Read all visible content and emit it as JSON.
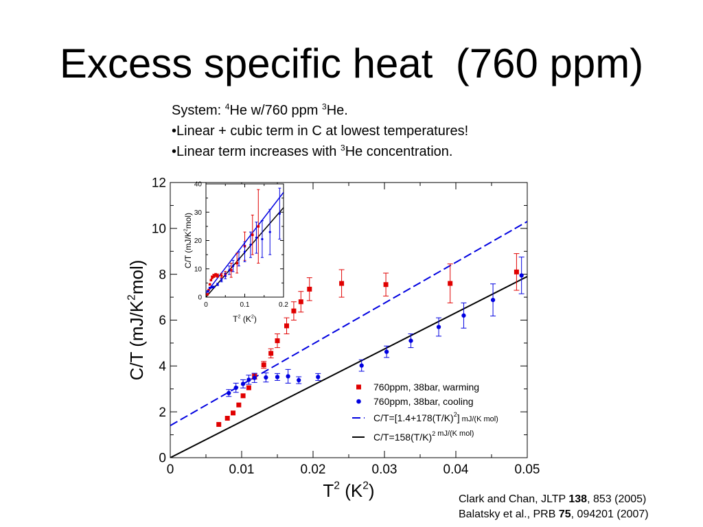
{
  "slide": {
    "title": "Excess specific heat  (760 ppm)"
  },
  "notes": {
    "line1": {
      "prefix": "System: ",
      "sup1": "4",
      "middle": "He w/760 ppm ",
      "sup2": "3",
      "suffix": "He."
    },
    "line2": "•Linear + cubic term in C at lowest temperatures!",
    "line3": {
      "prefix": "•Linear term increases with ",
      "sup": "3",
      "suffix": "He concentration."
    }
  },
  "references": {
    "ref1": {
      "prefix": "Clark and Chan, JLTP ",
      "bold": "138",
      "suffix": ", 853 (2005)"
    },
    "ref2": {
      "prefix": "Balatsky et al., PRB ",
      "bold": "75",
      "suffix": ", 094201 (2007)"
    }
  },
  "colors": {
    "warming": "#e00000",
    "cooling": "#0000e0",
    "fit_dashed": "#0000e0",
    "fit_solid": "#000000"
  },
  "chart_data": [
    {
      "type": "scatter",
      "xlabel_base": "T",
      "xlabel_sup": "2",
      "xlabel_unit": "  (K",
      "xlabel_unit_sup": "2",
      "xlabel_close": ")",
      "ylabel_base": "C/T  (mJ/K",
      "ylabel_sup": "2",
      "ylabel_close": "mol)",
      "xlim": [
        0,
        0.05
      ],
      "ylim": [
        0,
        12
      ],
      "xticks": [
        "0",
        "0.01",
        "0.02",
        "0.03",
        "0.04",
        "0.05"
      ],
      "yticks": [
        "0",
        "2",
        "4",
        "6",
        "8",
        "10",
        "12"
      ],
      "grid": false,
      "legend_position": "bottom-right",
      "series": [
        {
          "name": "760ppm, 38bar, warming",
          "color": "#e00000",
          "marker": "square",
          "points": [
            {
              "x": 0.0068,
              "y": 1.45,
              "err": 0
            },
            {
              "x": 0.008,
              "y": 1.72,
              "err": 0
            },
            {
              "x": 0.0088,
              "y": 1.95,
              "err": 0
            },
            {
              "x": 0.0096,
              "y": 2.3,
              "err": 0
            },
            {
              "x": 0.0102,
              "y": 2.7,
              "err": 0
            },
            {
              "x": 0.011,
              "y": 3.05,
              "err": 0
            },
            {
              "x": 0.0118,
              "y": 3.55,
              "err": 0.12
            },
            {
              "x": 0.0131,
              "y": 4.05,
              "err": 0.15
            },
            {
              "x": 0.0141,
              "y": 4.55,
              "err": 0.2
            },
            {
              "x": 0.015,
              "y": 5.1,
              "err": 0.3
            },
            {
              "x": 0.0163,
              "y": 5.75,
              "err": 0.35
            },
            {
              "x": 0.0173,
              "y": 6.4,
              "err": 0.4
            },
            {
              "x": 0.0183,
              "y": 6.8,
              "err": 0.45
            },
            {
              "x": 0.0195,
              "y": 7.35,
              "err": 0.5
            },
            {
              "x": 0.024,
              "y": 7.6,
              "err": 0.6
            },
            {
              "x": 0.0302,
              "y": 7.55,
              "err": 0.5
            },
            {
              "x": 0.0392,
              "y": 7.6,
              "err": 0.85
            },
            {
              "x": 0.0485,
              "y": 8.1,
              "err": 0.8
            }
          ]
        },
        {
          "name": "760ppm, 38bar, cooling",
          "color": "#0000e0",
          "marker": "circle",
          "points": [
            {
              "x": 0.0082,
              "y": 2.82,
              "err": 0.15
            },
            {
              "x": 0.0092,
              "y": 3.05,
              "err": 0.2
            },
            {
              "x": 0.0102,
              "y": 3.22,
              "err": 0.18
            },
            {
              "x": 0.011,
              "y": 3.4,
              "err": 0.2
            },
            {
              "x": 0.0118,
              "y": 3.48,
              "err": 0.2
            },
            {
              "x": 0.0134,
              "y": 3.5,
              "err": 0.2
            },
            {
              "x": 0.015,
              "y": 3.52,
              "err": 0.15
            },
            {
              "x": 0.0165,
              "y": 3.55,
              "err": 0.3
            },
            {
              "x": 0.018,
              "y": 3.38,
              "err": 0.15
            },
            {
              "x": 0.0207,
              "y": 3.52,
              "err": 0.15
            },
            {
              "x": 0.0268,
              "y": 4.02,
              "err": 0.25
            },
            {
              "x": 0.0303,
              "y": 4.62,
              "err": 0.25
            },
            {
              "x": 0.0337,
              "y": 5.1,
              "err": 0.3
            },
            {
              "x": 0.0376,
              "y": 5.7,
              "err": 0.4
            },
            {
              "x": 0.0411,
              "y": 6.2,
              "err": 0.55
            },
            {
              "x": 0.0452,
              "y": 6.88,
              "err": 0.7
            },
            {
              "x": 0.0492,
              "y": 7.95,
              "err": 0.8
            }
          ]
        },
        {
          "name_main": "C/T=[1.4+178(T/K)",
          "name_sup": "2",
          "name_close": "]",
          "name_unit": " mJ/(K mol)",
          "color": "#0000e0",
          "line": "dashed",
          "intercept": 1.4,
          "slope": 178
        },
        {
          "name_main": "C/T=158(T/K)",
          "name_sup": "2",
          "name_close": "",
          "name_unit": " mJ/(K mol)",
          "color": "#000000",
          "line": "solid",
          "intercept": 0,
          "slope": 158
        }
      ]
    },
    {
      "type": "scatter",
      "role": "inset",
      "xlabel_base": "T",
      "xlabel_sup": "2",
      "xlabel_unit": "  (K",
      "xlabel_unit_sup": "2",
      "xlabel_close": ")",
      "ylabel_base": "C/T  (mJ/K",
      "ylabel_sup": "2",
      "ylabel_close": "mol)",
      "xlim": [
        0,
        0.2
      ],
      "ylim": [
        0,
        40
      ],
      "xticks": [
        "0",
        "0.1",
        "0.2"
      ],
      "yticks": [
        "0",
        "10",
        "20",
        "30",
        "40"
      ],
      "grid": false,
      "series": [
        {
          "name": "760ppm, 38bar, warming",
          "color": "#e00000",
          "marker": "square",
          "points": [
            {
              "x": 0.004,
              "y": 1.0,
              "err": 0
            },
            {
              "x": 0.007,
              "y": 2.5,
              "err": 0
            },
            {
              "x": 0.01,
              "y": 4.5,
              "err": 0
            },
            {
              "x": 0.013,
              "y": 6.0,
              "err": 0
            },
            {
              "x": 0.016,
              "y": 7.0,
              "err": 0.5
            },
            {
              "x": 0.02,
              "y": 7.5,
              "err": 0.6
            },
            {
              "x": 0.025,
              "y": 7.8,
              "err": 0.6
            },
            {
              "x": 0.03,
              "y": 7.6,
              "err": 0.6
            },
            {
              "x": 0.04,
              "y": 7.6,
              "err": 0.8
            },
            {
              "x": 0.05,
              "y": 8.2,
              "err": 0.9
            },
            {
              "x": 0.065,
              "y": 9.5,
              "err": 2.5
            },
            {
              "x": 0.08,
              "y": 12.0,
              "err": 3.5
            },
            {
              "x": 0.1,
              "y": 18.0,
              "err": 5.0
            },
            {
              "x": 0.12,
              "y": 22.0,
              "err": 7.0
            },
            {
              "x": 0.135,
              "y": 25.0,
              "err": 13.0
            }
          ]
        },
        {
          "name": "760ppm, 38bar, cooling",
          "color": "#0000e0",
          "marker": "circle",
          "points": [
            {
              "x": 0.005,
              "y": 2.0,
              "err": 0.3
            },
            {
              "x": 0.01,
              "y": 3.2,
              "err": 0.3
            },
            {
              "x": 0.015,
              "y": 3.5,
              "err": 0.3
            },
            {
              "x": 0.02,
              "y": 3.6,
              "err": 0.3
            },
            {
              "x": 0.03,
              "y": 4.5,
              "err": 0.4
            },
            {
              "x": 0.04,
              "y": 6.0,
              "err": 0.6
            },
            {
              "x": 0.05,
              "y": 7.5,
              "err": 1.0
            },
            {
              "x": 0.06,
              "y": 9.5,
              "err": 1.5
            },
            {
              "x": 0.07,
              "y": 11.0,
              "err": 2.0
            },
            {
              "x": 0.085,
              "y": 13.5,
              "err": 2.5
            },
            {
              "x": 0.1,
              "y": 16.0,
              "err": 3.5
            },
            {
              "x": 0.115,
              "y": 18.5,
              "err": 4.5
            },
            {
              "x": 0.13,
              "y": 21.0,
              "err": 5.5
            },
            {
              "x": 0.145,
              "y": 20.5,
              "err": 6.5
            },
            {
              "x": 0.165,
              "y": 23.0,
              "err": 8.0
            },
            {
              "x": 0.19,
              "y": 29.5,
              "err": 9.0
            }
          ]
        },
        {
          "color": "#0000e0",
          "line": "solid",
          "intercept": 1.4,
          "slope": 178
        },
        {
          "color": "#000000",
          "line": "solid",
          "intercept": 0,
          "slope": 158
        }
      ]
    }
  ]
}
